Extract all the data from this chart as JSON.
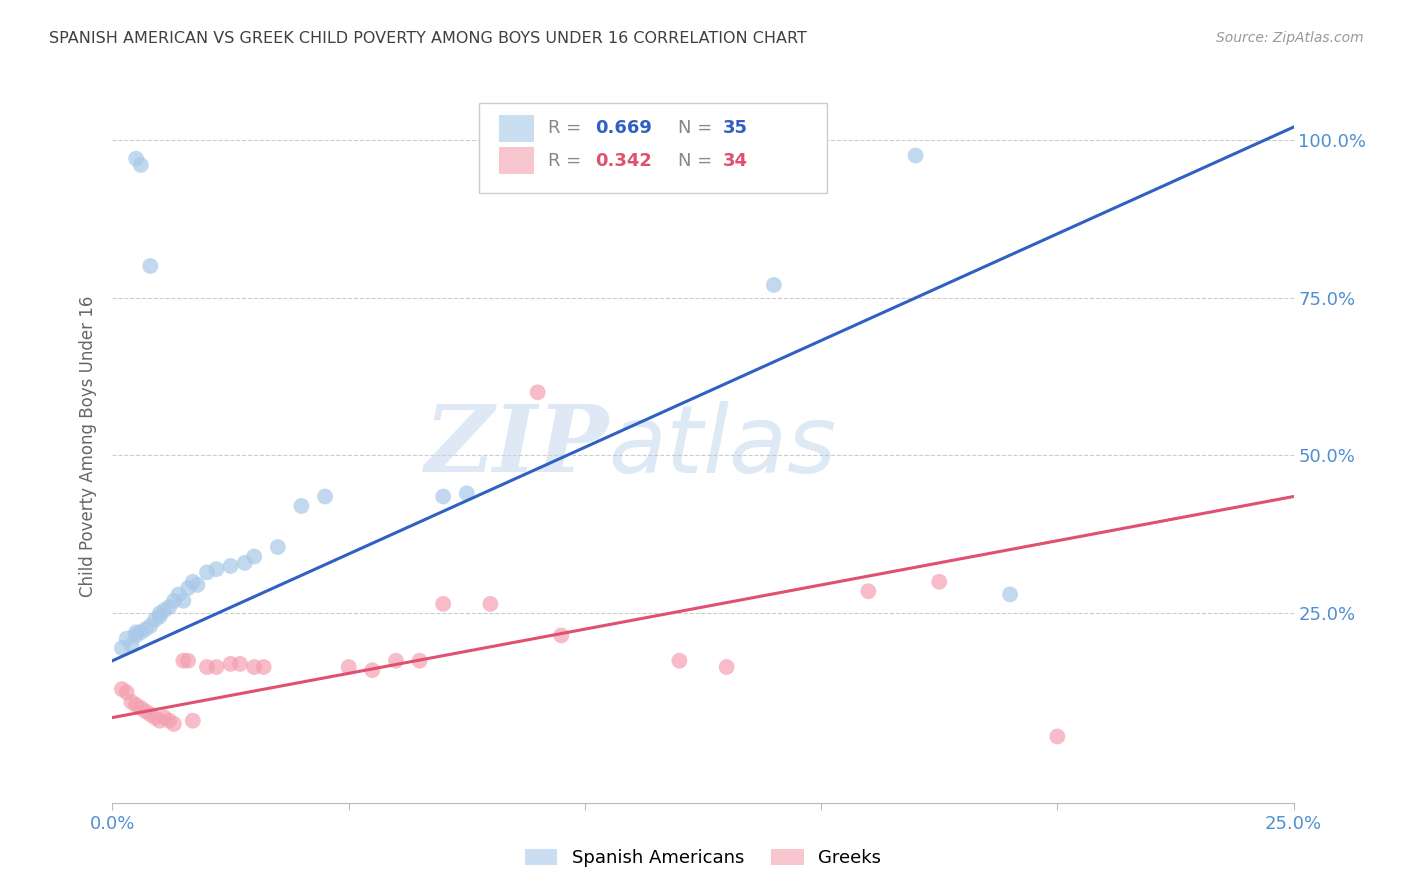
{
  "title": "SPANISH AMERICAN VS GREEK CHILD POVERTY AMONG BOYS UNDER 16 CORRELATION CHART",
  "source": "Source: ZipAtlas.com",
  "ylabel": "Child Poverty Among Boys Under 16",
  "ytick_labels": [
    "100.0%",
    "75.0%",
    "50.0%",
    "25.0%"
  ],
  "ytick_values": [
    1.0,
    0.75,
    0.5,
    0.25
  ],
  "xlim": [
    0.0,
    0.25
  ],
  "ylim": [
    -0.05,
    1.08
  ],
  "watermark_zip": "ZIP",
  "watermark_atlas": "atlas",
  "blue_color": "#a8c8e8",
  "pink_color": "#f4a0b0",
  "blue_line_color": "#3060c0",
  "pink_line_color": "#e05070",
  "title_color": "#404040",
  "axis_label_color": "#5090d0",
  "grid_color": "#cccccc",
  "blue_scatter": [
    [
      0.002,
      0.195
    ],
    [
      0.003,
      0.21
    ],
    [
      0.004,
      0.2
    ],
    [
      0.005,
      0.22
    ],
    [
      0.005,
      0.215
    ],
    [
      0.005,
      0.97
    ],
    [
      0.006,
      0.96
    ],
    [
      0.006,
      0.22
    ],
    [
      0.007,
      0.225
    ],
    [
      0.008,
      0.8
    ],
    [
      0.008,
      0.23
    ],
    [
      0.009,
      0.24
    ],
    [
      0.01,
      0.245
    ],
    [
      0.01,
      0.25
    ],
    [
      0.011,
      0.255
    ],
    [
      0.012,
      0.26
    ],
    [
      0.013,
      0.27
    ],
    [
      0.014,
      0.28
    ],
    [
      0.015,
      0.27
    ],
    [
      0.016,
      0.29
    ],
    [
      0.017,
      0.3
    ],
    [
      0.018,
      0.295
    ],
    [
      0.02,
      0.315
    ],
    [
      0.022,
      0.32
    ],
    [
      0.025,
      0.325
    ],
    [
      0.028,
      0.33
    ],
    [
      0.03,
      0.34
    ],
    [
      0.035,
      0.355
    ],
    [
      0.04,
      0.42
    ],
    [
      0.045,
      0.435
    ],
    [
      0.07,
      0.435
    ],
    [
      0.075,
      0.44
    ],
    [
      0.14,
      0.77
    ],
    [
      0.17,
      0.975
    ],
    [
      0.19,
      0.28
    ]
  ],
  "pink_scatter": [
    [
      0.002,
      0.13
    ],
    [
      0.003,
      0.125
    ],
    [
      0.004,
      0.11
    ],
    [
      0.005,
      0.105
    ],
    [
      0.006,
      0.1
    ],
    [
      0.007,
      0.095
    ],
    [
      0.008,
      0.09
    ],
    [
      0.009,
      0.085
    ],
    [
      0.01,
      0.08
    ],
    [
      0.011,
      0.085
    ],
    [
      0.012,
      0.08
    ],
    [
      0.013,
      0.075
    ],
    [
      0.015,
      0.175
    ],
    [
      0.016,
      0.175
    ],
    [
      0.017,
      0.08
    ],
    [
      0.02,
      0.165
    ],
    [
      0.022,
      0.165
    ],
    [
      0.025,
      0.17
    ],
    [
      0.027,
      0.17
    ],
    [
      0.03,
      0.165
    ],
    [
      0.032,
      0.165
    ],
    [
      0.05,
      0.165
    ],
    [
      0.055,
      0.16
    ],
    [
      0.06,
      0.175
    ],
    [
      0.065,
      0.175
    ],
    [
      0.07,
      0.265
    ],
    [
      0.08,
      0.265
    ],
    [
      0.09,
      0.6
    ],
    [
      0.095,
      0.215
    ],
    [
      0.12,
      0.175
    ],
    [
      0.13,
      0.165
    ],
    [
      0.16,
      0.285
    ],
    [
      0.175,
      0.3
    ],
    [
      0.2,
      0.055
    ]
  ],
  "blue_line": {
    "x0": 0.0,
    "y0": 0.175,
    "x1": 0.25,
    "y1": 1.02
  },
  "pink_line": {
    "x0": 0.0,
    "y0": 0.085,
    "x1": 0.25,
    "y1": 0.435
  }
}
